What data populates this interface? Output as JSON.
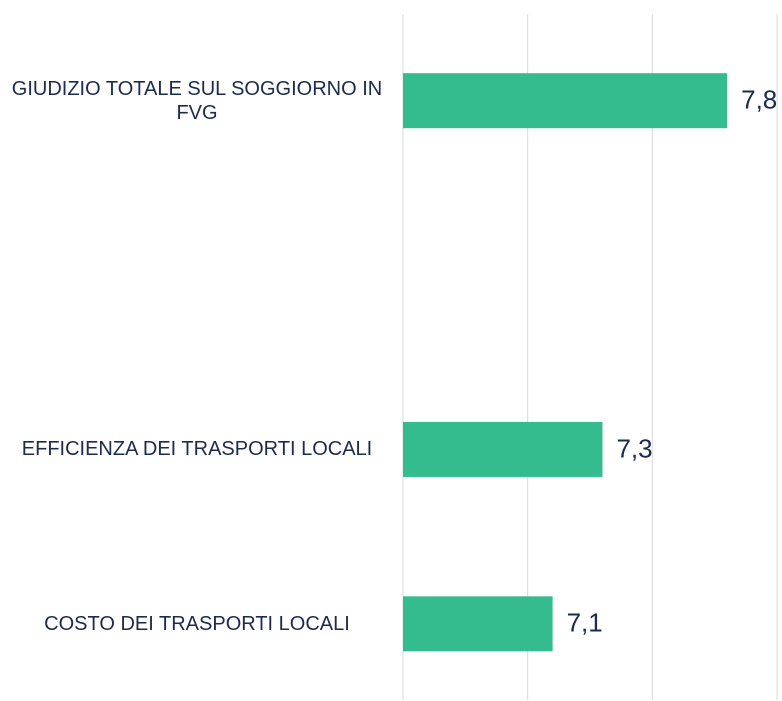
{
  "chart_data": {
    "type": "hbar",
    "categories": [
      "GIUDIZIO TOTALE SUL SOGGIORNO IN FVG",
      null,
      "EFFICIENZA DEI TRASPORTI LOCALI",
      "COSTO DEI TRASPORTI LOCALI"
    ],
    "values": [
      7.8,
      null,
      7.3,
      7.1
    ],
    "value_labels": [
      "7,8",
      null,
      "7,3",
      "7,1"
    ],
    "color": "#34bc8f",
    "xlim": [
      6.5,
      8.0
    ],
    "xticks": [
      6.5,
      7.0,
      7.5,
      8.0
    ],
    "grid": true
  }
}
